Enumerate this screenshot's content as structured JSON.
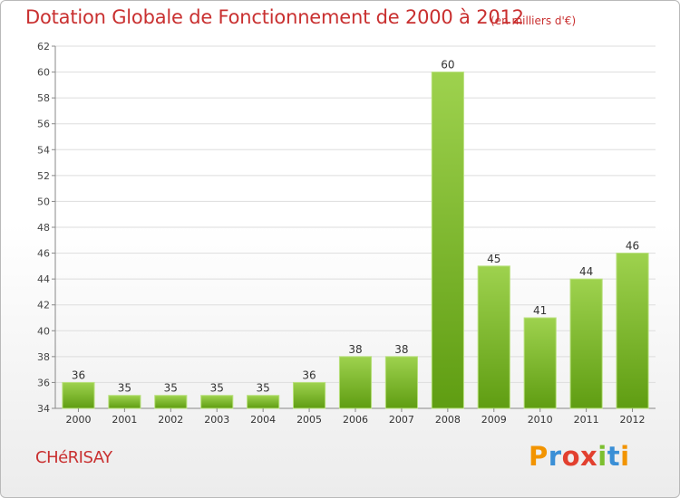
{
  "header": {
    "title": "Dotation Globale de Fonctionnement de 2000 à 2012",
    "subtitle": "(en milliers d'€)"
  },
  "footer": {
    "commune": "CHéRISAY",
    "logo_text": "Proxiti"
  },
  "colors": {
    "title": "#c93030",
    "bar_light": "#9ed24e",
    "bar_dark": "#5f9d12",
    "grid": "#dddddd",
    "axis": "#888888"
  },
  "chart_data": {
    "type": "bar",
    "title": "Dotation Globale de Fonctionnement de 2000 à 2012",
    "subtitle": "(en milliers d'€)",
    "xlabel": "",
    "ylabel": "",
    "categories": [
      "2000",
      "2001",
      "2002",
      "2003",
      "2004",
      "2005",
      "2006",
      "2007",
      "2008",
      "2009",
      "2010",
      "2011",
      "2012"
    ],
    "values": [
      36,
      35,
      35,
      35,
      35,
      36,
      38,
      38,
      60,
      45,
      41,
      44,
      46
    ],
    "ylim": [
      34,
      62
    ],
    "yticks": [
      34,
      36,
      38,
      40,
      42,
      44,
      46,
      48,
      50,
      52,
      54,
      56,
      58,
      60,
      62
    ],
    "grid": true,
    "data_labels": true,
    "legend": "none"
  }
}
